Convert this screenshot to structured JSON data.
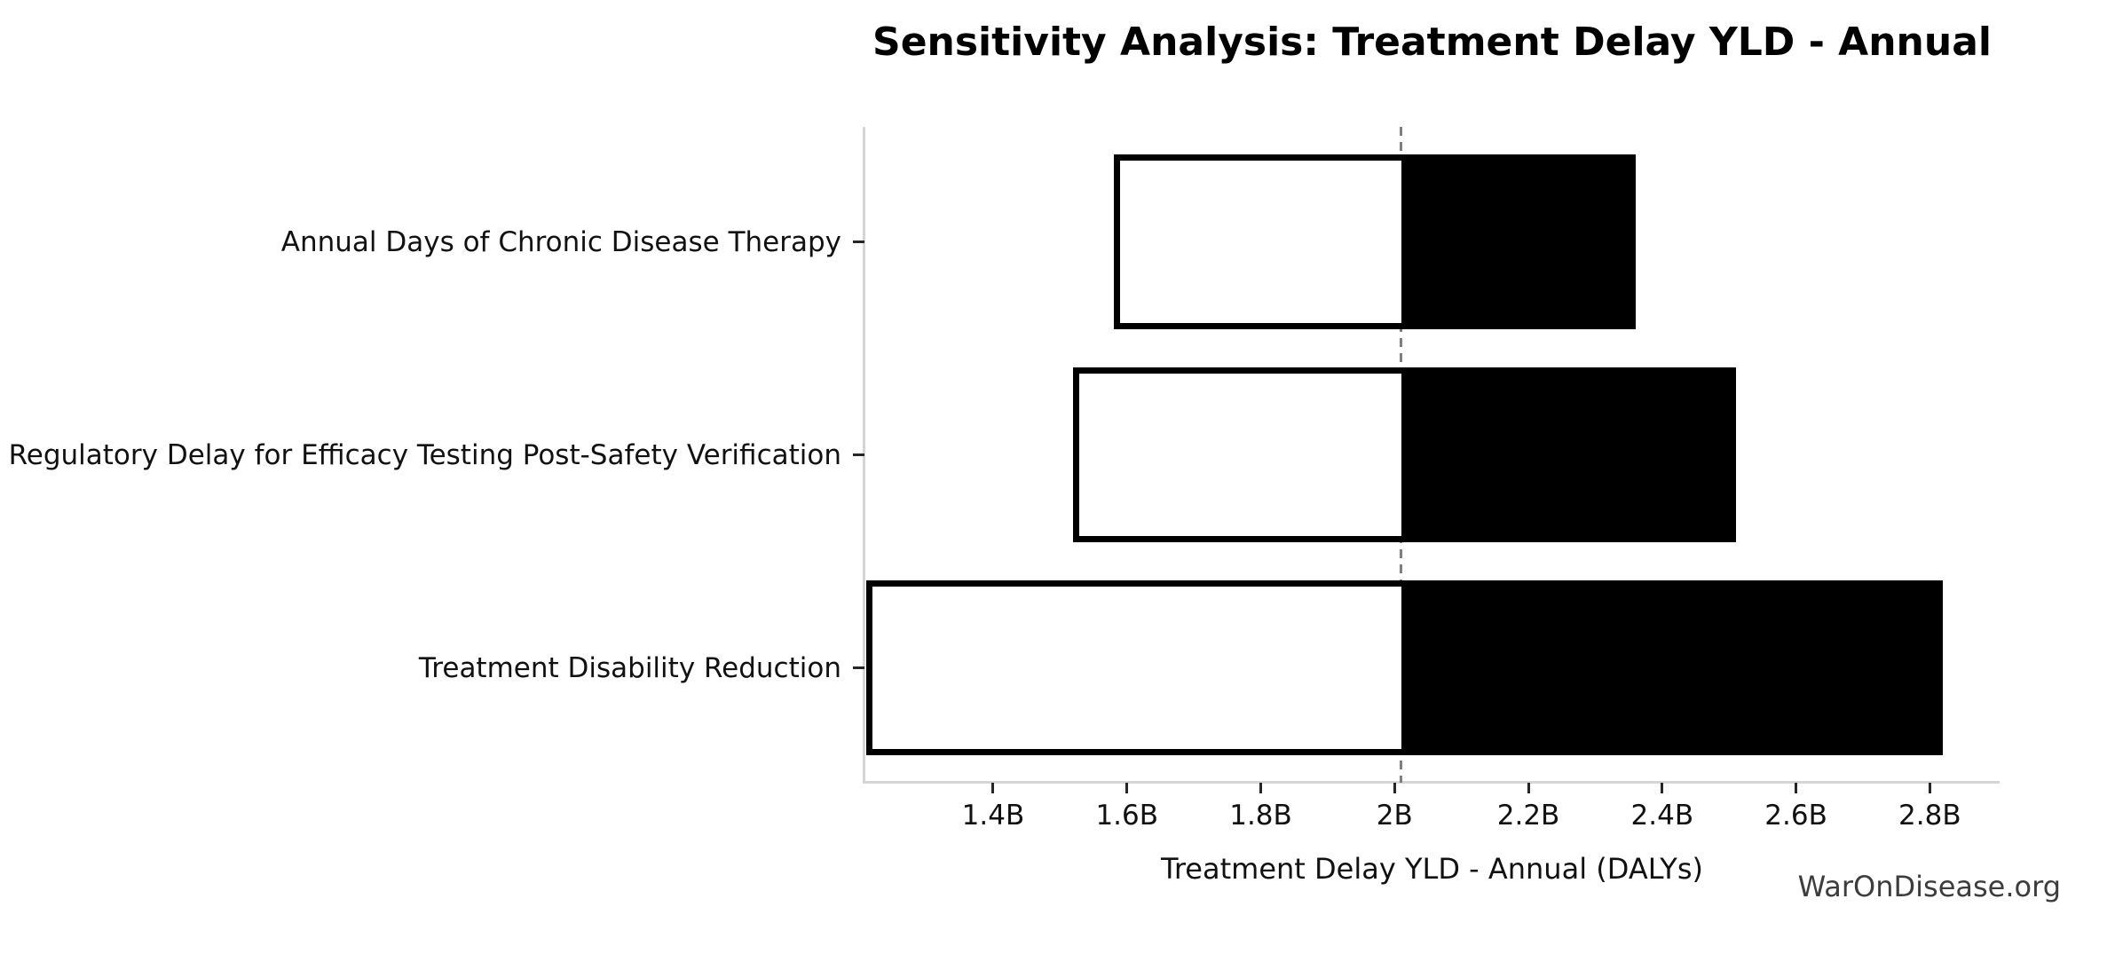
{
  "watermark": "WarOnDisease.org",
  "chart_data": {
    "type": "bar",
    "subtype": "tornado-sensitivity",
    "orientation": "horizontal",
    "title": "Sensitivity Analysis: Treatment Delay YLD - Annual",
    "xlabel": "Treatment Delay YLD - Annual (DALYs)",
    "unit": "DALYs (billions)",
    "baseline_value": 2.01,
    "xlim": [
      1.209,
      2.903
    ],
    "grid": false,
    "legend": "none",
    "xticks": [
      {
        "value": 1.4,
        "label": "1.4B"
      },
      {
        "value": 1.6,
        "label": "1.6B"
      },
      {
        "value": 1.8,
        "label": "1.8B"
      },
      {
        "value": 2.0,
        "label": "2B"
      },
      {
        "value": 2.2,
        "label": "2.2B"
      },
      {
        "value": 2.4,
        "label": "2.4B"
      },
      {
        "value": 2.6,
        "label": "2.6B"
      },
      {
        "value": 2.8,
        "label": "2.8B"
      }
    ],
    "categories": [
      "Annual Days of Chronic Disease Therapy",
      "Regulatory Delay for Efficacy Testing Post-Safety Verification",
      "Treatment Disability Reduction"
    ],
    "bars": [
      {
        "label": "Annual Days of Chronic Disease Therapy",
        "low": 1.58,
        "high": 2.36
      },
      {
        "label": "Regulatory Delay for Efficacy Testing Post-Safety Verification",
        "low": 1.52,
        "high": 2.51
      },
      {
        "label": "Treatment Disability Reduction",
        "low": 1.21,
        "high": 2.82
      }
    ],
    "colors": {
      "low_fill": "#ffffff",
      "high_fill": "#000000",
      "bar_edge": "#000000",
      "baseline_line": "#7f7f7f",
      "spine": "#d5d5d5",
      "tick": "#262626",
      "text": "#111111",
      "title": "#000000",
      "watermark": "#3d3d3d",
      "background": "#ffffff"
    }
  }
}
